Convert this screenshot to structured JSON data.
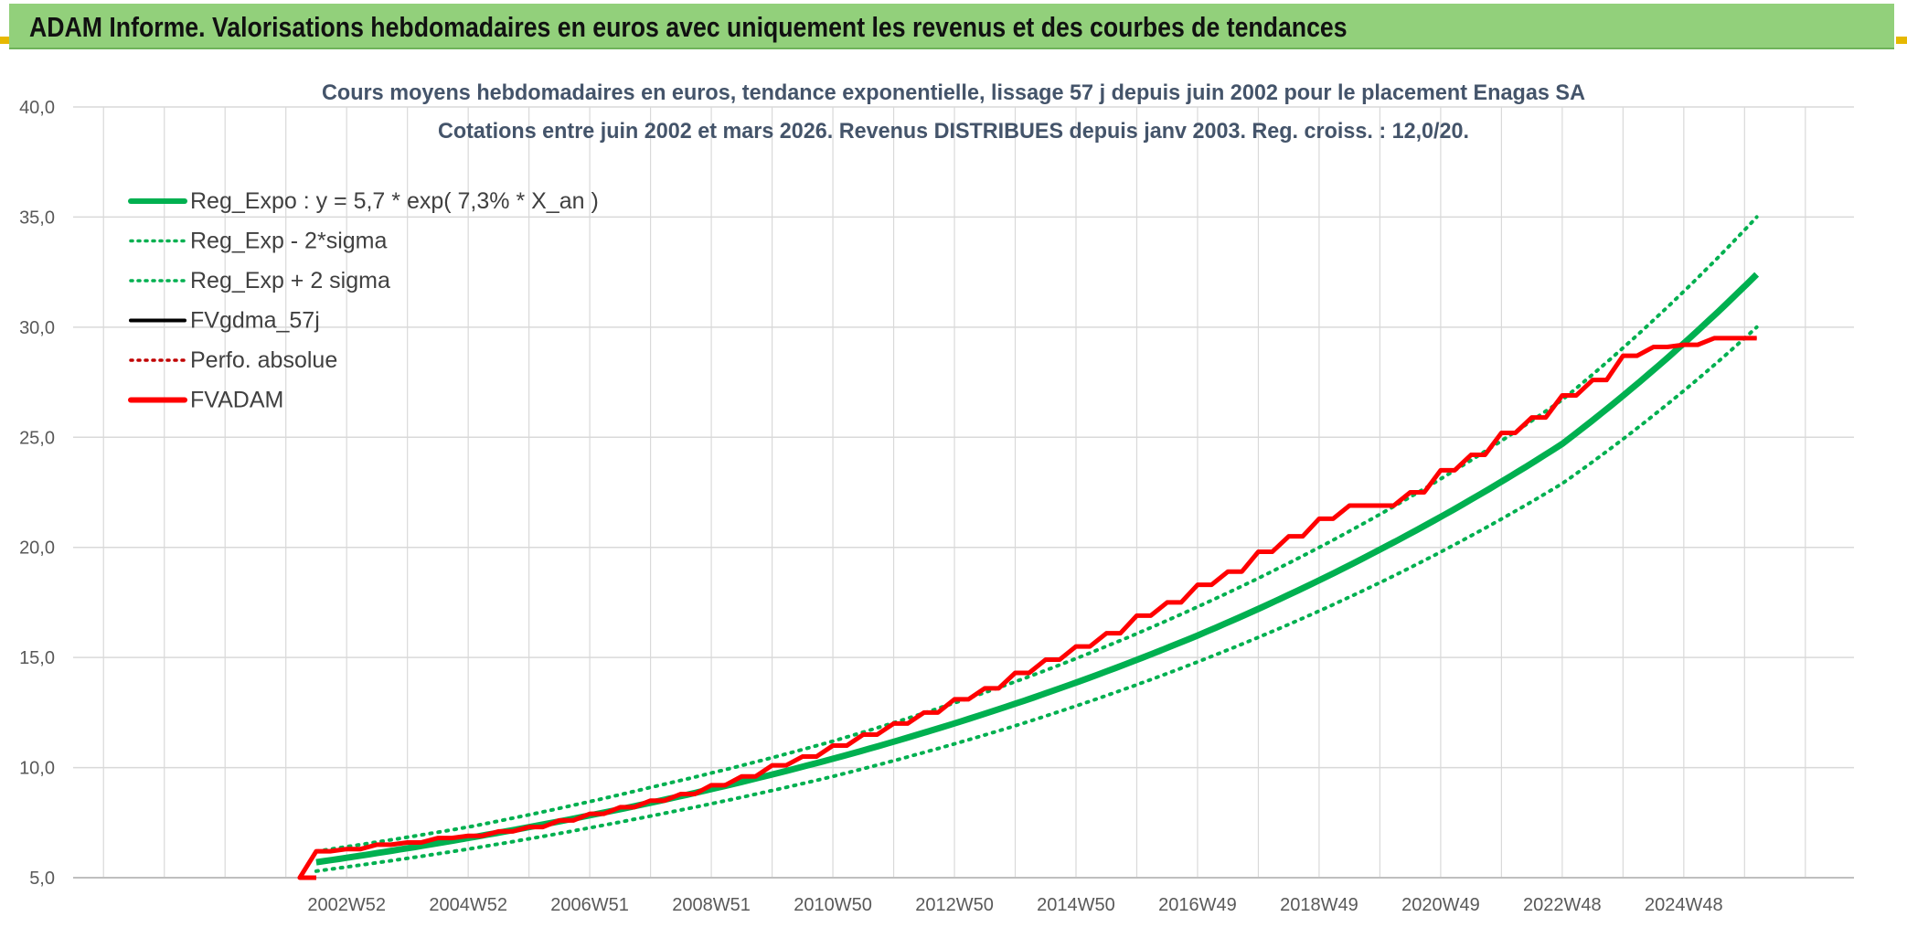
{
  "banner": {
    "title": "ADAM Informe. Valorisations hebdomadaires en euros avec uniquement les revenus et des courbes de tendances"
  },
  "colors": {
    "banner": "#92d07b",
    "green": "#00b050",
    "red": "#ff0000",
    "black": "#000000",
    "grid": "#d9d9d9",
    "text": "#44546a"
  },
  "chart_data": {
    "type": "line",
    "title": "Cours moyens hebdomadaires en euros, tendance exponentielle, lissage 57 j depuis juin 2002 pour le placement Enagas SA",
    "subtitle": "Cotations entre juin 2002 et mars 2026. Revenus DISTRIBUES depuis janv 2003. Reg. croiss. : 12,0/20.",
    "xlabel": "",
    "ylabel": "",
    "ylim": [
      5,
      40
    ],
    "y_ticks": [
      "5,0",
      "10,0",
      "15,0",
      "20,0",
      "25,0",
      "30,0",
      "35,0",
      "40,0"
    ],
    "y_tick_values": [
      5,
      10,
      15,
      20,
      25,
      30,
      35,
      40
    ],
    "x_range": [
      1998.5,
      2027.8
    ],
    "x_tick_labels": [
      "2002W52",
      "2004W52",
      "2006W51",
      "2008W51",
      "2010W50",
      "2012W50",
      "2014W50",
      "2016W49",
      "2018W49",
      "2020W49",
      "2022W48",
      "2024W48"
    ],
    "x_tick_positions": [
      2003.0,
      2005.0,
      2007.0,
      2009.0,
      2011.0,
      2013.0,
      2015.0,
      2017.0,
      2019.0,
      2021.0,
      2023.0,
      2025.0
    ],
    "grid": true,
    "legend": [
      {
        "label": "Reg_Expo : y = 5,7 * exp( 7,3% *  X_an )",
        "color": "#00b050",
        "style": "solid-thick"
      },
      {
        "label": "Reg_Exp - 2*sigma",
        "color": "#00b050",
        "style": "dotted"
      },
      {
        "label": "Reg_Exp + 2 sigma",
        "color": "#00b050",
        "style": "dotted"
      },
      {
        "label": "FVgdma_57j",
        "color": "#000000",
        "style": "solid"
      },
      {
        "label": "Perfo. absolue",
        "color": "#c00000",
        "style": "dotted"
      },
      {
        "label": "FVADAM",
        "color": "#ff0000",
        "style": "solid-thick"
      }
    ],
    "legend_position": "top-left",
    "series": [
      {
        "name": "Reg_Expo",
        "x": [
          2002.5,
          2005,
          2008,
          2011,
          2014,
          2017,
          2020,
          2023,
          2026.2
        ],
        "values": [
          5.7,
          6.8,
          8.4,
          10.4,
          12.9,
          16.0,
          19.9,
          24.7,
          32.4
        ]
      },
      {
        "name": "Reg_Exp - 2*sigma",
        "x": [
          2002.5,
          2005,
          2008,
          2011,
          2014,
          2017,
          2020,
          2023,
          2026.2
        ],
        "values": [
          5.3,
          6.3,
          7.8,
          9.6,
          11.9,
          14.8,
          18.4,
          22.9,
          30.0
        ]
      },
      {
        "name": "Reg_Exp + 2 sigma",
        "x": [
          2002.5,
          2005,
          2008,
          2011,
          2014,
          2017,
          2020,
          2023,
          2026.2
        ],
        "values": [
          6.2,
          7.3,
          9.1,
          11.2,
          13.9,
          17.3,
          21.5,
          26.7,
          35.0
        ]
      },
      {
        "name": "FVADAM",
        "x": [
          2002.5,
          2002.5,
          2003.0,
          2003.5,
          2004.0,
          2004.5,
          2005.0,
          2005.5,
          2006.0,
          2006.5,
          2007.0,
          2007.5,
          2008.0,
          2008.5,
          2009.0,
          2009.5,
          2010.0,
          2010.5,
          2011.0,
          2011.5,
          2012.0,
          2012.5,
          2013.0,
          2013.5,
          2014.0,
          2014.5,
          2015.0,
          2015.5,
          2016.0,
          2016.5,
          2017.0,
          2017.5,
          2018.0,
          2018.5,
          2019.0,
          2019.5,
          2020.0,
          2020.5,
          2021.0,
          2021.5,
          2022.0,
          2022.5,
          2023.0,
          2023.5,
          2024.0,
          2024.5,
          2025.0,
          2025.5,
          2026.2
        ],
        "values": [
          5.0,
          6.2,
          6.3,
          6.5,
          6.6,
          6.8,
          6.9,
          7.1,
          7.3,
          7.6,
          7.9,
          8.2,
          8.5,
          8.8,
          9.2,
          9.6,
          10.1,
          10.5,
          11.0,
          11.5,
          12.0,
          12.5,
          13.1,
          13.6,
          14.3,
          14.9,
          15.5,
          16.1,
          16.9,
          17.5,
          18.3,
          18.9,
          19.8,
          20.5,
          21.3,
          21.9,
          21.9,
          22.5,
          23.5,
          24.2,
          25.2,
          25.9,
          26.9,
          27.6,
          28.7,
          29.1,
          29.2,
          29.5,
          29.5
        ]
      }
    ]
  }
}
